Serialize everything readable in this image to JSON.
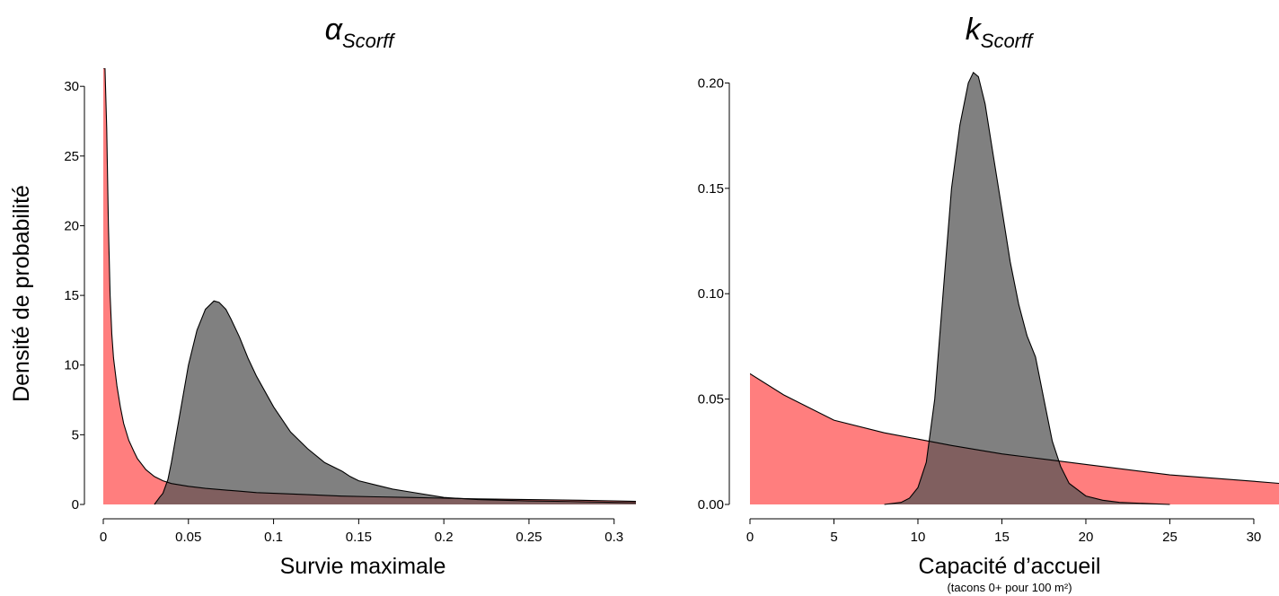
{
  "figure": {
    "ylabel": "Densité de probabilité",
    "colors": {
      "prior": "#ff5a5a",
      "posterior": "#555555",
      "overlap": "#6e3434",
      "axis": "#000000"
    }
  },
  "chart_data": [
    {
      "type": "area",
      "title_main": "α",
      "title_sub": "Scorff",
      "xlabel": "Survie maximale",
      "xlabel_sub": "",
      "xlim": [
        -0.0045,
        0.3128
      ],
      "ylim": [
        0,
        31.3
      ],
      "xticks": [
        0,
        0.05,
        0.1,
        0.15,
        0.2,
        0.25,
        0.3
      ],
      "xtick_labels": [
        "0",
        "0.05",
        "0.1",
        "0.15",
        "0.2",
        "0.25",
        "0.3"
      ],
      "yticks": [
        0,
        5,
        10,
        15,
        20,
        25,
        30
      ],
      "ytick_labels": [
        "0",
        "5",
        "10",
        "15",
        "20",
        "25",
        "30"
      ],
      "series": [
        {
          "role": "prior",
          "x": [
            0,
            0.0005,
            0.001,
            0.002,
            0.003,
            0.004,
            0.005,
            0.006,
            0.008,
            0.01,
            0.012,
            0.015,
            0.018,
            0.02,
            0.025,
            0.03,
            0.035,
            0.04,
            0.05,
            0.06,
            0.07,
            0.08,
            0.09,
            0.1,
            0.12,
            0.14,
            0.16,
            0.18,
            0.2,
            0.22,
            0.25,
            0.28,
            0.3,
            0.3128
          ],
          "values": [
            31.3,
            31.3,
            31.3,
            27,
            20,
            15,
            12.2,
            10.5,
            8.5,
            7,
            5.8,
            4.6,
            3.8,
            3.3,
            2.5,
            2.0,
            1.7,
            1.5,
            1.3,
            1.15,
            1.05,
            0.95,
            0.85,
            0.8,
            0.7,
            0.6,
            0.55,
            0.5,
            0.45,
            0.4,
            0.35,
            0.3,
            0.25,
            0.22
          ]
        },
        {
          "role": "posterior",
          "x": [
            0.03,
            0.033,
            0.035,
            0.038,
            0.04,
            0.045,
            0.05,
            0.055,
            0.06,
            0.065,
            0.068,
            0.072,
            0.075,
            0.08,
            0.085,
            0.09,
            0.1,
            0.11,
            0.12,
            0.13,
            0.14,
            0.145,
            0.15,
            0.16,
            0.17,
            0.18,
            0.2,
            0.22,
            0.25,
            0.28,
            0.3,
            0.3128
          ],
          "values": [
            0.0,
            0.5,
            0.8,
            1.8,
            3.0,
            6.5,
            10.0,
            12.5,
            14.0,
            14.6,
            14.5,
            14.0,
            13.3,
            12.0,
            10.5,
            9.2,
            7.0,
            5.2,
            4.0,
            3.0,
            2.4,
            2.0,
            1.7,
            1.4,
            1.1,
            0.9,
            0.5,
            0.35,
            0.25,
            0.2,
            0.15,
            0.12
          ]
        }
      ]
    },
    {
      "type": "area",
      "title_main": "k",
      "title_sub": "Scorff",
      "xlabel": "Capacité d’accueil",
      "xlabel_sub": "(tacons 0+ pour 100 m²)",
      "xlim": [
        -1.0,
        31.5
      ],
      "ylim": [
        0,
        0.207
      ],
      "xticks": [
        0,
        5,
        10,
        15,
        20,
        25,
        30
      ],
      "xtick_labels": [
        "0",
        "5",
        "10",
        "15",
        "20",
        "25",
        "30"
      ],
      "yticks": [
        0,
        0.05,
        0.1,
        0.15,
        0.2
      ],
      "ytick_labels": [
        "0.00",
        "0.05",
        "0.10",
        "0.15",
        "0.20"
      ],
      "series": [
        {
          "role": "prior",
          "x": [
            0,
            2,
            5,
            8,
            10,
            12,
            15,
            18,
            20,
            25,
            30,
            31.5
          ],
          "values": [
            0.062,
            0.052,
            0.04,
            0.034,
            0.031,
            0.028,
            0.024,
            0.021,
            0.019,
            0.014,
            0.011,
            0.01
          ]
        },
        {
          "role": "posterior",
          "x": [
            8,
            9,
            9.5,
            10,
            10.5,
            11,
            11.5,
            12,
            12.5,
            13,
            13.3,
            13.6,
            14,
            14.5,
            15,
            15.5,
            16,
            16.5,
            17,
            17.5,
            18,
            18.5,
            19,
            20,
            21,
            22,
            24,
            25
          ],
          "values": [
            0.0,
            0.001,
            0.003,
            0.008,
            0.02,
            0.05,
            0.1,
            0.15,
            0.18,
            0.2,
            0.205,
            0.203,
            0.19,
            0.165,
            0.14,
            0.115,
            0.095,
            0.08,
            0.07,
            0.05,
            0.03,
            0.018,
            0.01,
            0.004,
            0.002,
            0.001,
            0.0003,
            0.0
          ]
        }
      ]
    }
  ]
}
